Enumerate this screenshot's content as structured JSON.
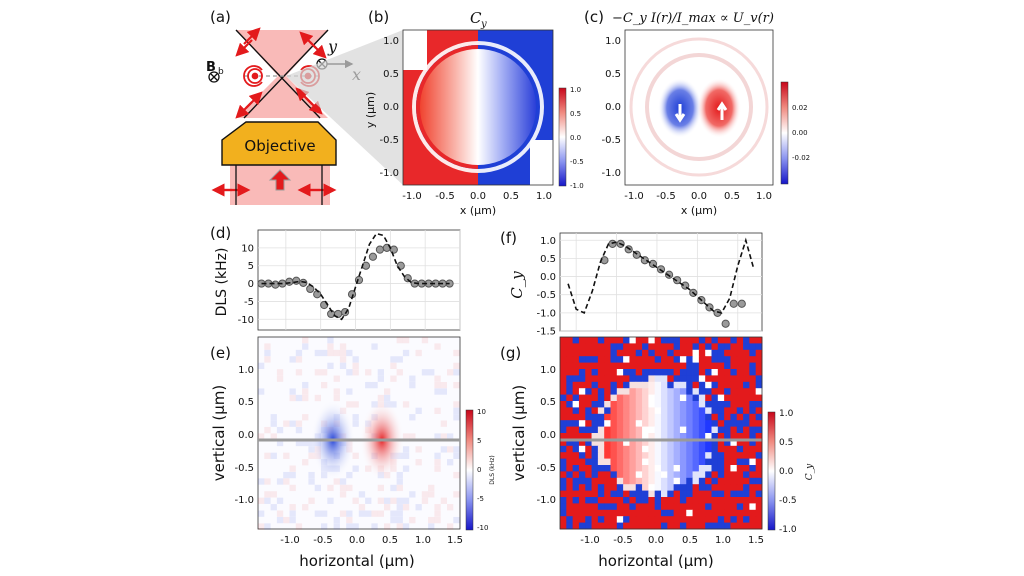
{
  "colors": {
    "red": "#e31a1c",
    "blue": "#1f3fd6",
    "beam": "#f7a3a0",
    "objective": "#f2b01e",
    "marker": "#9a9a9a"
  },
  "labels": {
    "a": "(a)",
    "b": "(b)",
    "c": "(c)",
    "d": "(d)",
    "e": "(e)",
    "f": "(f)",
    "g": "(g)"
  },
  "panel_a": {
    "objective": "Objective",
    "bfield": "B",
    "bfield_sub": "b",
    "axis_y": "y",
    "axis_x": "x"
  },
  "panel_b": {
    "title": "C",
    "title_sub": "y",
    "xlabel": "x (μm)",
    "ylabel": "y (μm)",
    "ticks": [
      "-1.0",
      "-0.5",
      "0.0",
      "0.5",
      "1.0"
    ],
    "cbar_ticks": [
      "1.0",
      "0.5",
      "0.0",
      "-0.5",
      "-1.0"
    ]
  },
  "panel_c": {
    "title": "−C_y I(r)/I_max ∝ U_v(r)",
    "xlabel": "x (μm)",
    "ticks": [
      "-1.0",
      "-0.5",
      "0.0",
      "0.5",
      "1.0"
    ],
    "cbar_ticks": [
      "0.02",
      "0.00",
      "-0.02"
    ]
  },
  "panel_e": {
    "xlabel": "horizontal (μm)",
    "ylabel": "vertical (μm)",
    "xticks": [
      "-1.0",
      "-0.5",
      "0.0",
      "0.5",
      "1.0",
      "1.5"
    ],
    "yticks": [
      "1.0",
      "0.5",
      "0.0",
      "-0.5",
      "-1.0"
    ],
    "cbar_ticks": [
      "10",
      "5",
      "0",
      "-5",
      "-10"
    ],
    "cbar_label": "DLS (kHz)"
  },
  "panel_g": {
    "xlabel": "horizontal (μm)",
    "ylabel": "vertical (μm)",
    "xticks": [
      "-1.0",
      "-0.5",
      "0.0",
      "0.5",
      "1.0",
      "1.5"
    ],
    "yticks": [
      "1.0",
      "0.5",
      "0.0",
      "-0.5",
      "-1.0"
    ],
    "cbar_ticks": [
      "1.0",
      "0.5",
      "0.0",
      "-0.5",
      "-1.0"
    ],
    "cbar_label": "C_y"
  },
  "chart_data": [
    {
      "panel": "d",
      "type": "line",
      "ylabel": "DLS (kHz)",
      "yticks": [
        "10",
        "5",
        "0",
        "-5",
        "-10"
      ],
      "xlim": [
        -1.4,
        1.5
      ],
      "ylim": [
        -13,
        15
      ],
      "series": [
        {
          "style": "markers",
          "x": [
            -1.35,
            -1.25,
            -1.15,
            -1.05,
            -0.95,
            -0.85,
            -0.75,
            -0.65,
            -0.55,
            -0.45,
            -0.35,
            -0.25,
            -0.15,
            -0.05,
            0.05,
            0.15,
            0.25,
            0.35,
            0.45,
            0.55,
            0.65,
            0.75,
            0.85,
            0.95,
            1.05,
            1.15,
            1.25,
            1.35
          ],
          "y": [
            0,
            0,
            -0.3,
            0,
            0.5,
            0.8,
            0.2,
            -1.5,
            -3,
            -6,
            -8.5,
            -8.5,
            -8,
            -3,
            1,
            5,
            7.5,
            9.5,
            10,
            9.5,
            5,
            1.5,
            0,
            0,
            0,
            0,
            0,
            0
          ]
        },
        {
          "style": "dashed",
          "x": [
            -1.35,
            -1.2,
            -1.05,
            -0.9,
            -0.8,
            -0.7,
            -0.6,
            -0.5,
            -0.4,
            -0.3,
            -0.2,
            -0.1,
            0,
            0.1,
            0.2,
            0.3,
            0.4,
            0.5,
            0.6,
            0.7,
            0.8,
            0.9,
            1.0,
            1.1,
            1.2,
            1.35
          ],
          "y": [
            0,
            0,
            0,
            0.3,
            0.6,
            0.3,
            -1,
            -3,
            -6,
            -9,
            -10,
            -7,
            -1,
            5,
            11,
            14,
            13.5,
            10,
            5,
            2,
            0.3,
            0,
            0,
            0,
            0,
            0
          ]
        }
      ]
    },
    {
      "panel": "f",
      "type": "line",
      "ylabel": "C_y",
      "yticks": [
        "1.0",
        "0.5",
        "0.0",
        "-0.5",
        "-1.0",
        "-1.5"
      ],
      "xlim": [
        -1.2,
        1.3
      ],
      "ylim": [
        -1.5,
        1.2
      ],
      "series": [
        {
          "style": "markers",
          "x": [
            -0.65,
            -0.55,
            -0.45,
            -0.35,
            -0.25,
            -0.15,
            -0.05,
            0.05,
            0.15,
            0.25,
            0.35,
            0.45,
            0.55,
            0.65,
            0.75,
            0.85,
            0.95,
            1.05
          ],
          "y": [
            0.45,
            0.9,
            0.9,
            0.75,
            0.6,
            0.45,
            0.35,
            0.2,
            0.05,
            -0.1,
            -0.25,
            -0.45,
            -0.65,
            -0.85,
            -1.0,
            -1.3,
            -0.75,
            -0.75
          ]
        },
        {
          "style": "dashed",
          "x": [
            -1.1,
            -1.0,
            -0.9,
            -0.8,
            -0.7,
            -0.6,
            -0.5,
            -0.4,
            -0.3,
            -0.2,
            -0.1,
            0,
            0.1,
            0.2,
            0.3,
            0.4,
            0.5,
            0.6,
            0.7,
            0.8,
            0.9,
            1.0,
            1.1,
            1.2
          ],
          "y": [
            -0.2,
            -0.9,
            -1.0,
            -0.4,
            0.4,
            0.9,
            0.95,
            0.85,
            0.7,
            0.55,
            0.4,
            0.25,
            0.1,
            -0.05,
            -0.2,
            -0.35,
            -0.55,
            -0.75,
            -0.95,
            -1.0,
            -0.6,
            0.3,
            1.0,
            0.2
          ]
        }
      ]
    }
  ]
}
